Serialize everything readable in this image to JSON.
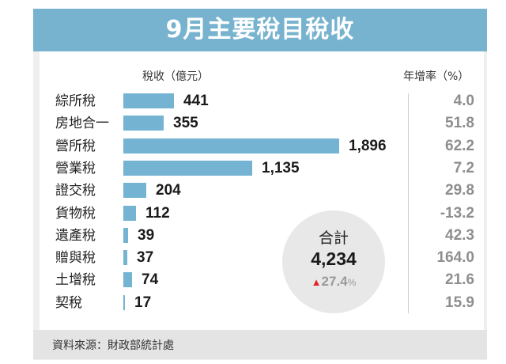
{
  "title": "9月主要稅目稅收",
  "columns": {
    "revenue_header": "稅收（億元）",
    "growth_header": "年增率（%）"
  },
  "rows": [
    {
      "category": "綜所稅",
      "revenue": "441",
      "growth": "4.0"
    },
    {
      "category": "房地合一",
      "revenue": "355",
      "growth": "51.8"
    },
    {
      "category": "營所稅",
      "revenue": "1,896",
      "growth": "62.2"
    },
    {
      "category": "營業稅",
      "revenue": "1,135",
      "growth": "7.2"
    },
    {
      "category": "證交稅",
      "revenue": "204",
      "growth": "29.8"
    },
    {
      "category": "貨物稅",
      "revenue": "112",
      "growth": "-13.2"
    },
    {
      "category": "遺產稅",
      "revenue": "39",
      "growth": "42.3"
    },
    {
      "category": "贈與稅",
      "revenue": "37",
      "growth": "164.0"
    },
    {
      "category": "土增稅",
      "revenue": "74",
      "growth": "21.6"
    },
    {
      "category": "契稅",
      "revenue": "17",
      "growth": "15.9"
    }
  ],
  "total": {
    "label": "合計",
    "value": "4,234",
    "arrow": "▲",
    "growth": "27.4",
    "unit": "%"
  },
  "source": "資料來源：財政部統計處",
  "colors": {
    "header_bg": "#77b3cf",
    "bar": "#74b4d2",
    "growth_text": "#8e8e8e",
    "up_arrow": "#e0262a",
    "circle_bg": "#e8e8e8"
  },
  "chart_data": {
    "type": "bar",
    "orientation": "horizontal",
    "title": "9月主要稅目稅收",
    "xlabel": "稅收（億元）",
    "ylabel": "",
    "categories": [
      "綜所稅",
      "房地合一",
      "營所稅",
      "營業稅",
      "證交稅",
      "貨物稅",
      "遺產稅",
      "贈與稅",
      "土增稅",
      "契稅"
    ],
    "series": [
      {
        "name": "稅收（億元）",
        "values": [
          441,
          355,
          1896,
          1135,
          204,
          112,
          39,
          37,
          74,
          17
        ]
      },
      {
        "name": "年增率（%）",
        "values": [
          4.0,
          51.8,
          62.2,
          7.2,
          29.8,
          -13.2,
          42.3,
          164.0,
          21.6,
          15.9
        ]
      }
    ],
    "annotations": [
      {
        "text": "合計 4,234",
        "growth": "▲27.4%"
      }
    ],
    "source": "資料來源：財政部統計處",
    "grid": false,
    "legend": "none"
  }
}
